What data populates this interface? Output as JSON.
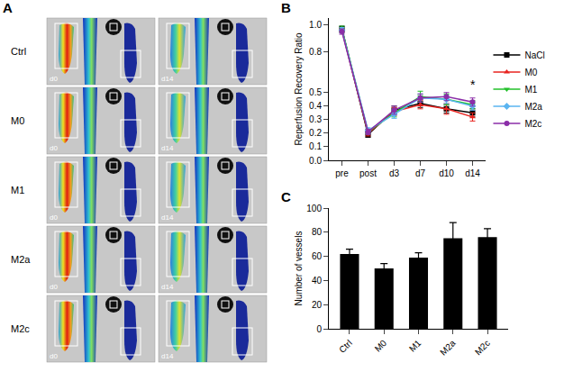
{
  "panel_a": {
    "panel": "A",
    "rows": [
      "Ctrl",
      "M0",
      "M1",
      "M2a",
      "M2c"
    ],
    "days": [
      "d0",
      "d14"
    ]
  },
  "chart_data": [
    {
      "panel": "B",
      "type": "line",
      "y_label": "Reperfusion Recovery Ratio",
      "categories": [
        "pre",
        "post",
        "d3",
        "d7",
        "d10",
        "d14"
      ],
      "series": [
        {
          "name": "NaCl",
          "color": "#000000",
          "marker": "square",
          "values": [
            0.97,
            0.19,
            0.37,
            0.42,
            0.38,
            0.35
          ],
          "errors": [
            0.02,
            0.02,
            0.03,
            0.03,
            0.03,
            0.03
          ]
        },
        {
          "name": "M0",
          "color": "#e8231f",
          "marker": "triangle-up",
          "values": [
            0.96,
            0.2,
            0.36,
            0.41,
            0.38,
            0.32
          ],
          "errors": [
            0.02,
            0.02,
            0.03,
            0.03,
            0.04,
            0.03
          ]
        },
        {
          "name": "M1",
          "color": "#22c02a",
          "marker": "triangle-down",
          "values": [
            0.97,
            0.21,
            0.35,
            0.47,
            0.45,
            0.41
          ],
          "errors": [
            0.02,
            0.02,
            0.03,
            0.04,
            0.04,
            0.03
          ]
        },
        {
          "name": "M2a",
          "color": "#5ab4f0",
          "marker": "diamond",
          "values": [
            0.96,
            0.22,
            0.34,
            0.46,
            0.45,
            0.4
          ],
          "errors": [
            0.02,
            0.02,
            0.03,
            0.03,
            0.03,
            0.03
          ]
        },
        {
          "name": "M2c",
          "color": "#8b2ea8",
          "marker": "circle",
          "values": [
            0.95,
            0.21,
            0.37,
            0.46,
            0.47,
            0.43
          ],
          "errors": [
            0.02,
            0.02,
            0.03,
            0.03,
            0.03,
            0.03
          ]
        }
      ],
      "ylim": [
        0,
        1.05
      ],
      "yticks": [
        {
          "value": 0,
          "label": "0.0"
        },
        0.1,
        0.2,
        0.3,
        0.4,
        0.5,
        0.8,
        {
          "value": 1,
          "label": "1.0"
        }
      ],
      "annotations": [
        {
          "category": "d14",
          "y": 0.49,
          "text": "*"
        }
      ],
      "legend": "right",
      "grid": false
    },
    {
      "panel": "C",
      "type": "bar",
      "y_label": "Number of vessels",
      "categories": [
        "Ctrl",
        "M0",
        "M1",
        "M2a",
        "M2c"
      ],
      "values": [
        62,
        50,
        59,
        75,
        76
      ],
      "errors": [
        4,
        4,
        4,
        13,
        7
      ],
      "color": "#000000",
      "ylim": [
        0,
        100
      ],
      "yticks": [
        0,
        20,
        40,
        60,
        80,
        100
      ],
      "grid": false
    }
  ]
}
